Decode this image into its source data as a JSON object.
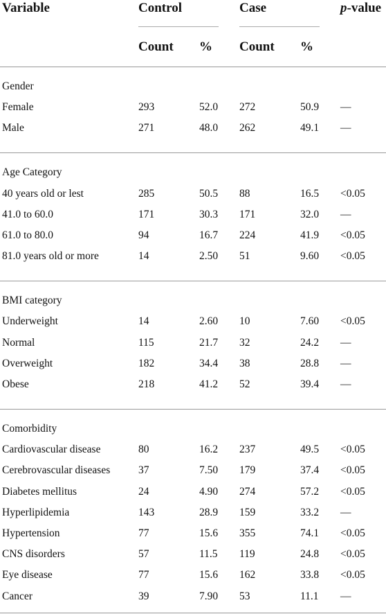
{
  "header": {
    "variable": "Variable",
    "control": "Control",
    "case": "Case",
    "p_value_italic": "p",
    "p_value_rest": "-value",
    "subheaders": [
      "Count",
      "%",
      "Count",
      "%"
    ]
  },
  "sections": [
    {
      "title": "Gender",
      "rows": [
        [
          "Female",
          "293",
          "52.0",
          "272",
          "50.9",
          "—"
        ],
        [
          "Male",
          "271",
          "48.0",
          "262",
          "49.1",
          "—"
        ]
      ]
    },
    {
      "title": "Age Category",
      "rows": [
        [
          "40 years old or lest",
          "285",
          "50.5",
          "88",
          "16.5",
          "<0.05"
        ],
        [
          "41.0 to 60.0",
          "171",
          "30.3",
          "171",
          "32.0",
          "—"
        ],
        [
          "61.0 to 80.0",
          "94",
          "16.7",
          "224",
          "41.9",
          "<0.05"
        ],
        [
          "81.0 years old or more",
          "14",
          "2.50",
          "51",
          "9.60",
          "<0.05"
        ]
      ]
    },
    {
      "title": "BMI category",
      "rows": [
        [
          "Underweight",
          "14",
          "2.60",
          "10",
          "7.60",
          "<0.05"
        ],
        [
          "Normal",
          "115",
          "21.7",
          "32",
          "24.2",
          "—"
        ],
        [
          "Overweight",
          "182",
          "34.4",
          "38",
          "28.8",
          "—"
        ],
        [
          "Obese",
          "218",
          "41.2",
          "52",
          "39.4",
          "—"
        ]
      ]
    },
    {
      "title": "Comorbidity",
      "rows": [
        [
          "Cardiovascular disease",
          "80",
          "16.2",
          "237",
          "49.5",
          "<0.05"
        ],
        [
          "Cerebrovascular diseases",
          "37",
          "7.50",
          "179",
          "37.4",
          "<0.05"
        ],
        [
          "Diabetes mellitus",
          "24",
          "4.90",
          "274",
          "57.2",
          "<0.05"
        ],
        [
          "Hyperlipidemia",
          "143",
          "28.9",
          "159",
          "33.2",
          "—"
        ],
        [
          "Hypertension",
          "77",
          "15.6",
          "355",
          "74.1",
          "<0.05"
        ],
        [
          "CNS disorders",
          "57",
          "11.5",
          "119",
          "24.8",
          "<0.05"
        ],
        [
          "Eye disease",
          "77",
          "15.6",
          "162",
          "33.8",
          "<0.05"
        ],
        [
          "Cancer",
          "39",
          "7.90",
          "53",
          "11.1",
          "—"
        ]
      ]
    }
  ]
}
